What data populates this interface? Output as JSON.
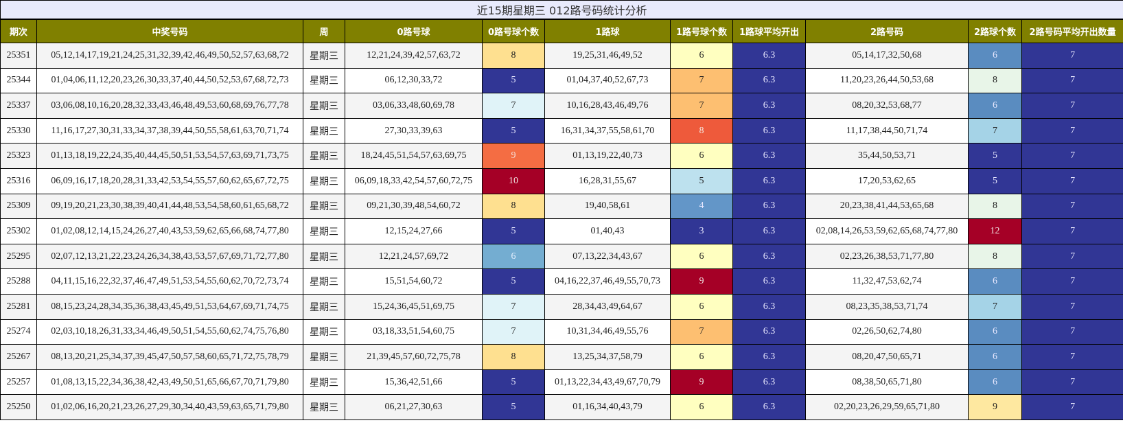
{
  "title": "近15期星期三 012路号码统计分析",
  "headers": [
    "期次",
    "中奖号码",
    "周",
    "0路号球",
    "0路号球个数",
    "1路球",
    "1路号球个数",
    "1路球平均开出",
    "2路号码",
    "2路球个数",
    "2路号码平均开出数量"
  ],
  "colors": {
    "title_bg": "#e8eafc",
    "header_bg": "#808000",
    "header_text": "#ffffff",
    "heat": {
      "3": "#313695",
      "4": "#6396c8",
      "5_dark": "#313695",
      "5_light": "#bde1ee",
      "6_count0": "#74add1",
      "6_yellow": "#ffffc0",
      "6_blue": "#5a8cc0",
      "7_light": "#e0f3f8",
      "7_orange": "#fdbf71",
      "7_sky": "#a5d3e7",
      "8_yellow": "#fee090",
      "8_red": "#ee5a3b",
      "8_mint": "#e8f5e8",
      "9_orange": "#f46d43",
      "9_red": "#a50026",
      "9_yellow": "#fee8a0",
      "10": "#a50026",
      "12": "#a50026",
      "avg": "#313695"
    }
  },
  "rows": [
    {
      "period": "25351",
      "numbers": "05,12,14,17,19,21,24,25,31,32,39,42,46,49,50,52,57,63,68,72",
      "week": "星期三",
      "r0": "12,21,24,39,42,57,63,72",
      "r0c": "8",
      "r0bg": "#fee090",
      "r0fg": "#222",
      "r1": "19,25,31,46,49,52",
      "r1c": "6",
      "r1bg": "#ffffc0",
      "r1fg": "#222",
      "r1avg": "6.3",
      "r2": "05,14,17,32,50,68",
      "r2c": "6",
      "r2bg": "#5a8cc0",
      "r2fg": "#e8e8ff",
      "r2avg": "7"
    },
    {
      "period": "25344",
      "numbers": "01,04,06,11,12,20,23,26,30,33,37,40,44,50,52,53,67,68,72,73",
      "week": "星期三",
      "r0": "06,12,30,33,72",
      "r0c": "5",
      "r0bg": "#313695",
      "r0fg": "#e8e8ff",
      "r1": "01,04,37,40,52,67,73",
      "r1c": "7",
      "r1bg": "#fdbf71",
      "r1fg": "#222",
      "r1avg": "6.3",
      "r2": "11,20,23,26,44,50,53,68",
      "r2c": "8",
      "r2bg": "#e8f5e8",
      "r2fg": "#222",
      "r2avg": "7"
    },
    {
      "period": "25337",
      "numbers": "03,06,08,10,16,20,28,32,33,43,46,48,49,53,60,68,69,76,77,78",
      "week": "星期三",
      "r0": "03,06,33,48,60,69,78",
      "r0c": "7",
      "r0bg": "#e0f3f8",
      "r0fg": "#222",
      "r1": "10,16,28,43,46,49,76",
      "r1c": "7",
      "r1bg": "#fdbf71",
      "r1fg": "#222",
      "r1avg": "6.3",
      "r2": "08,20,32,53,68,77",
      "r2c": "6",
      "r2bg": "#5a8cc0",
      "r2fg": "#e8e8ff",
      "r2avg": "7"
    },
    {
      "period": "25330",
      "numbers": "11,16,17,27,30,31,33,34,37,38,39,44,50,55,58,61,63,70,71,74",
      "week": "星期三",
      "r0": "27,30,33,39,63",
      "r0c": "5",
      "r0bg": "#313695",
      "r0fg": "#e8e8ff",
      "r1": "16,31,34,37,55,58,61,70",
      "r1c": "8",
      "r1bg": "#ee5a3b",
      "r1fg": "#f5e8e0",
      "r1avg": "6.3",
      "r2": "11,17,38,44,50,71,74",
      "r2c": "7",
      "r2bg": "#a5d3e7",
      "r2fg": "#222",
      "r2avg": "7"
    },
    {
      "period": "25323",
      "numbers": "01,13,18,19,22,24,35,40,44,45,50,51,53,54,57,63,69,71,73,75",
      "week": "星期三",
      "r0": "18,24,45,51,54,57,63,69,75",
      "r0c": "9",
      "r0bg": "#f46d43",
      "r0fg": "#f5e0d8",
      "r1": "01,13,19,22,40,73",
      "r1c": "6",
      "r1bg": "#ffffc0",
      "r1fg": "#222",
      "r1avg": "6.3",
      "r2": "35,44,50,53,71",
      "r2c": "5",
      "r2bg": "#313695",
      "r2fg": "#e8e8ff",
      "r2avg": "7"
    },
    {
      "period": "25316",
      "numbers": "06,09,16,17,18,20,28,31,33,42,53,54,55,57,60,62,65,67,72,75",
      "week": "星期三",
      "r0": "06,09,18,33,42,54,57,60,72,75",
      "r0c": "10",
      "r0bg": "#a50026",
      "r0fg": "#f0e0e0",
      "r1": "16,28,31,55,67",
      "r1c": "5",
      "r1bg": "#bde1ee",
      "r1fg": "#222",
      "r1avg": "6.3",
      "r2": "17,20,53,62,65",
      "r2c": "5",
      "r2bg": "#313695",
      "r2fg": "#e8e8ff",
      "r2avg": "7"
    },
    {
      "period": "25309",
      "numbers": "09,19,20,21,23,30,38,39,40,41,44,48,53,54,58,60,61,65,68,72",
      "week": "星期三",
      "r0": "09,21,30,39,48,54,60,72",
      "r0c": "8",
      "r0bg": "#fee090",
      "r0fg": "#222",
      "r1": "19,40,58,61",
      "r1c": "4",
      "r1bg": "#6396c8",
      "r1fg": "#e8e8ff",
      "r1avg": "6.3",
      "r2": "20,23,38,41,44,53,65,68",
      "r2c": "8",
      "r2bg": "#e8f5e8",
      "r2fg": "#222",
      "r2avg": "7"
    },
    {
      "period": "25302",
      "numbers": "01,02,08,12,14,15,24,26,27,40,43,53,59,62,65,66,68,74,77,80",
      "week": "星期三",
      "r0": "12,15,24,27,66",
      "r0c": "5",
      "r0bg": "#313695",
      "r0fg": "#e8e8ff",
      "r1": "01,40,43",
      "r1c": "3",
      "r1bg": "#313695",
      "r1fg": "#e8e8ff",
      "r1avg": "6.3",
      "r2": "02,08,14,26,53,59,62,65,68,74,77,80",
      "r2c": "12",
      "r2bg": "#a50026",
      "r2fg": "#f0e0e0",
      "r2avg": "7"
    },
    {
      "period": "25295",
      "numbers": "02,07,12,13,21,22,23,24,26,34,38,43,53,57,67,69,71,72,77,80",
      "week": "星期三",
      "r0": "12,21,24,57,69,72",
      "r0c": "6",
      "r0bg": "#74add1",
      "r0fg": "#e8f0ff",
      "r1": "07,13,22,34,43,67",
      "r1c": "6",
      "r1bg": "#ffffc0",
      "r1fg": "#222",
      "r1avg": "6.3",
      "r2": "02,23,26,38,53,71,77,80",
      "r2c": "8",
      "r2bg": "#e8f5e8",
      "r2fg": "#222",
      "r2avg": "7"
    },
    {
      "period": "25288",
      "numbers": "04,11,15,16,22,32,37,46,47,49,51,53,54,55,60,62,70,72,73,74",
      "week": "星期三",
      "r0": "15,51,54,60,72",
      "r0c": "5",
      "r0bg": "#313695",
      "r0fg": "#e8e8ff",
      "r1": "04,16,22,37,46,49,55,70,73",
      "r1c": "9",
      "r1bg": "#a50026",
      "r1fg": "#f0e0e0",
      "r1avg": "6.3",
      "r2": "11,32,47,53,62,74",
      "r2c": "6",
      "r2bg": "#5a8cc0",
      "r2fg": "#e8e8ff",
      "r2avg": "7"
    },
    {
      "period": "25281",
      "numbers": "08,15,23,24,28,34,35,36,38,43,45,49,51,53,64,67,69,71,74,75",
      "week": "星期三",
      "r0": "15,24,36,45,51,69,75",
      "r0c": "7",
      "r0bg": "#e0f3f8",
      "r0fg": "#222",
      "r1": "28,34,43,49,64,67",
      "r1c": "6",
      "r1bg": "#ffffc0",
      "r1fg": "#222",
      "r1avg": "6.3",
      "r2": "08,23,35,38,53,71,74",
      "r2c": "7",
      "r2bg": "#a5d3e7",
      "r2fg": "#222",
      "r2avg": "7"
    },
    {
      "period": "25274",
      "numbers": "02,03,10,18,26,31,33,34,46,49,50,51,54,55,60,62,74,75,76,80",
      "week": "星期三",
      "r0": "03,18,33,51,54,60,75",
      "r0c": "7",
      "r0bg": "#e0f3f8",
      "r0fg": "#222",
      "r1": "10,31,34,46,49,55,76",
      "r1c": "7",
      "r1bg": "#fdbf71",
      "r1fg": "#222",
      "r1avg": "6.3",
      "r2": "02,26,50,62,74,80",
      "r2c": "6",
      "r2bg": "#5a8cc0",
      "r2fg": "#e8e8ff",
      "r2avg": "7"
    },
    {
      "period": "25267",
      "numbers": "08,13,20,21,25,34,37,39,45,47,50,57,58,60,65,71,72,75,78,79",
      "week": "星期三",
      "r0": "21,39,45,57,60,72,75,78",
      "r0c": "8",
      "r0bg": "#fee090",
      "r0fg": "#222",
      "r1": "13,25,34,37,58,79",
      "r1c": "6",
      "r1bg": "#ffffc0",
      "r1fg": "#222",
      "r1avg": "6.3",
      "r2": "08,20,47,50,65,71",
      "r2c": "6",
      "r2bg": "#5a8cc0",
      "r2fg": "#e8e8ff",
      "r2avg": "7"
    },
    {
      "period": "25257",
      "numbers": "01,08,13,15,22,34,36,38,42,43,49,50,51,65,66,67,70,71,79,80",
      "week": "星期三",
      "r0": "15,36,42,51,66",
      "r0c": "5",
      "r0bg": "#313695",
      "r0fg": "#e8e8ff",
      "r1": "01,13,22,34,43,49,67,70,79",
      "r1c": "9",
      "r1bg": "#a50026",
      "r1fg": "#f0e0e0",
      "r1avg": "6.3",
      "r2": "08,38,50,65,71,80",
      "r2c": "6",
      "r2bg": "#5a8cc0",
      "r2fg": "#e8e8ff",
      "r2avg": "7"
    },
    {
      "period": "25250",
      "numbers": "01,02,06,16,20,21,23,26,27,29,30,34,40,43,59,63,65,71,79,80",
      "week": "星期三",
      "r0": "06,21,27,30,63",
      "r0c": "5",
      "r0bg": "#313695",
      "r0fg": "#e8e8ff",
      "r1": "01,16,34,40,43,79",
      "r1c": "6",
      "r1bg": "#ffffc0",
      "r1fg": "#222",
      "r1avg": "6.3",
      "r2": "02,20,23,26,29,59,65,71,80",
      "r2c": "9",
      "r2bg": "#fee8a0",
      "r2fg": "#222",
      "r2avg": "7"
    }
  ]
}
